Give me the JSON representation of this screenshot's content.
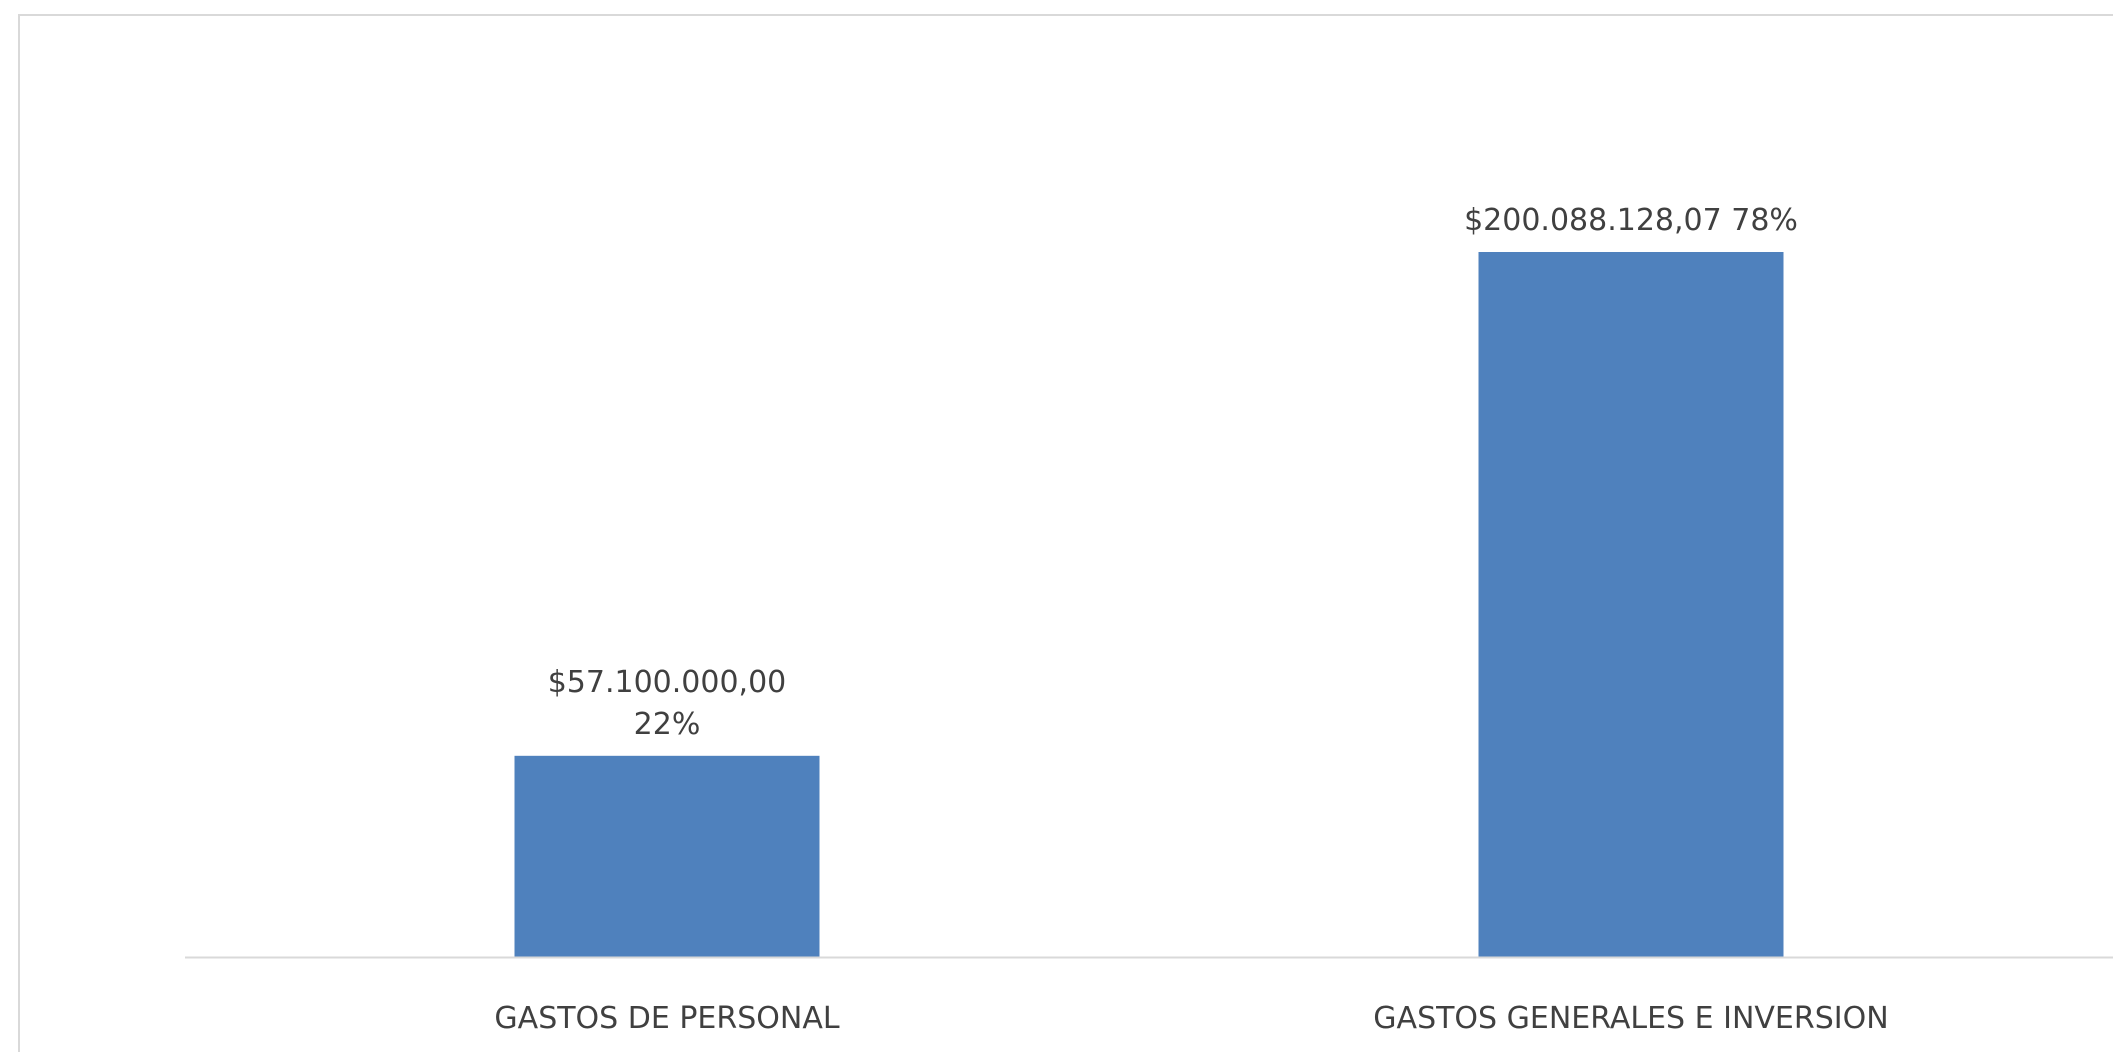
{
  "chart_data": {
    "type": "bar",
    "categories": [
      "GASTOS DE PERSONAL",
      "GASTOS GENERALES E INVERSION"
    ],
    "values": [
      57100000.0,
      200088128.07
    ],
    "percentages": [
      22,
      78
    ],
    "data_labels": [
      [
        "$57.100.000,00",
        "22%"
      ],
      [
        "$200.088.128,07 78%"
      ]
    ],
    "title": "",
    "xlabel": "",
    "ylabel": "",
    "ylim": [
      0,
      200088128.07
    ],
    "grid": false,
    "legend": "none",
    "colors": {
      "bar": "#4f81bd",
      "axis": "#d9d9d9",
      "text": "#404040"
    }
  }
}
